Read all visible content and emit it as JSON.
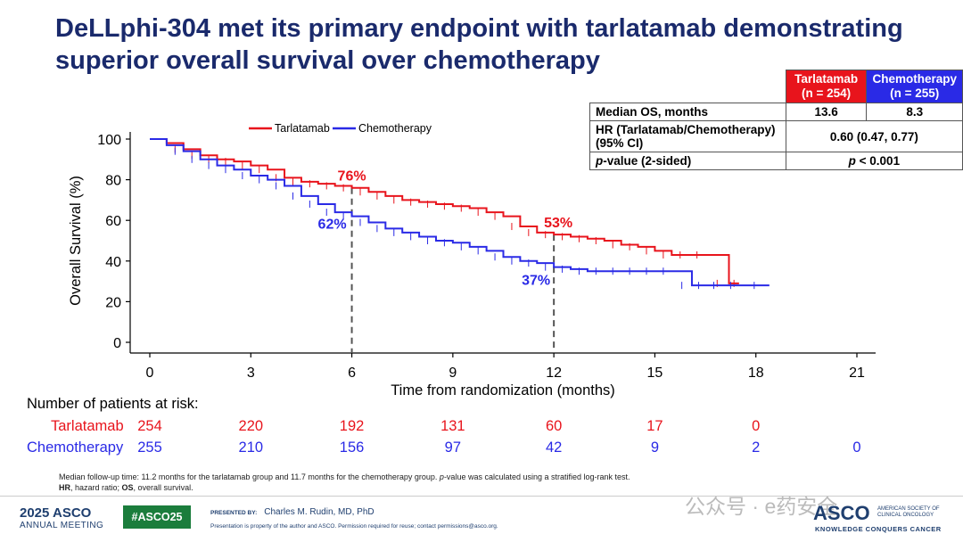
{
  "title_line1": "DeLLphi-304 met its primary endpoint with tarlatamab demonstrating",
  "title_line2": "superior overall survival over chemotherapy",
  "table": {
    "header_tarlatamab_line1": "Tarlatamab",
    "header_tarlatamab_line2": "(n = 254)",
    "header_chemo_line1": "Chemotherapy",
    "header_chemo_line2": "(n = 255)",
    "row1_label": "Median OS, months",
    "row1_tarlatamab": "13.6",
    "row1_chemo": "8.3",
    "row2_label_line1": "HR (Tarlatamab/Chemotherapy)",
    "row2_label_line2": "(95% CI)",
    "row2_value": "0.60 (0.47, 0.77)",
    "row3_label_p": "p",
    "row3_label_rest": "-value (2-sided)",
    "row3_value_p": "p",
    "row3_value_rest": " < 0.001"
  },
  "colors": {
    "tarlatamab": "#e8141c",
    "chemotherapy": "#2a2ae6",
    "title": "#1a2a6c"
  },
  "chart_data": {
    "type": "line",
    "xlabel": "Time from randomization (months)",
    "ylabel": "Overall Survival (%)",
    "xlim": [
      0,
      21
    ],
    "ylim": [
      0,
      100
    ],
    "xticks": [
      0,
      3,
      6,
      9,
      12,
      15,
      18,
      21
    ],
    "yticks": [
      0,
      20,
      40,
      60,
      80,
      100
    ],
    "legend_position": "top-center",
    "grid": false,
    "series": [
      {
        "name": "Tarlatamab",
        "color": "#e8141c",
        "x": [
          0,
          0.5,
          1,
          1.5,
          2,
          2.5,
          3,
          3.5,
          4,
          4.5,
          5,
          5.5,
          6,
          6.5,
          7,
          7.5,
          8,
          8.5,
          9,
          9.5,
          10,
          10.5,
          11,
          11.5,
          12,
          12.5,
          13,
          13.5,
          14,
          14.5,
          15,
          15.5,
          16,
          16.5,
          17.2,
          17.5
        ],
        "y": [
          100,
          98,
          95,
          92,
          90,
          89,
          87,
          85,
          81,
          79,
          78,
          77,
          76,
          74,
          72,
          70,
          69,
          68,
          67,
          66,
          64,
          62,
          57,
          54,
          53,
          52,
          51,
          50,
          48,
          47,
          45,
          43,
          43,
          43,
          29,
          29
        ]
      },
      {
        "name": "Chemotherapy",
        "color": "#2a2ae6",
        "x": [
          0,
          0.5,
          1,
          1.5,
          2,
          2.5,
          3,
          3.5,
          4,
          4.5,
          5,
          5.5,
          6,
          6.5,
          7,
          7.5,
          8,
          8.5,
          9,
          9.5,
          10,
          10.5,
          11,
          11.5,
          12,
          12.5,
          13,
          13.5,
          14,
          14.5,
          15,
          15.5,
          16.1,
          16.5,
          17,
          17.5,
          18.4
        ],
        "y": [
          100,
          97,
          94,
          90,
          87,
          85,
          82,
          80,
          77,
          72,
          68,
          64,
          62,
          59,
          56,
          54,
          52,
          50,
          49,
          47,
          45,
          42,
          40,
          39,
          37,
          36,
          35,
          35,
          35,
          35,
          35,
          35,
          28,
          28,
          28,
          28,
          28
        ]
      }
    ],
    "annotations": [
      {
        "text": "76%",
        "x": 6,
        "y": 76,
        "series": "Tarlatamab"
      },
      {
        "text": "62%",
        "x": 6,
        "y": 62,
        "series": "Chemotherapy"
      },
      {
        "text": "53%",
        "x": 12,
        "y": 53,
        "series": "Tarlatamab"
      },
      {
        "text": "37%",
        "x": 12,
        "y": 37,
        "series": "Chemotherapy"
      }
    ],
    "reference_lines_x": [
      6,
      12
    ]
  },
  "risk_table": {
    "title": "Number of patients at risk:",
    "times": [
      0,
      3,
      6,
      9,
      12,
      15,
      18,
      21
    ],
    "tarlatamab_label": "Tarlatamab",
    "tarlatamab": [
      "254",
      "220",
      "192",
      "131",
      "60",
      "17",
      "0",
      ""
    ],
    "chemo_label": "Chemotherapy",
    "chemo": [
      "255",
      "210",
      "156",
      "97",
      "42",
      "9",
      "2",
      "0"
    ]
  },
  "notes": {
    "line1_a": "Median follow-up time: 11.2 months for the tarlatamab group and 11.7 months for the chemotherapy group. ",
    "line1_p": "p",
    "line1_b": "-value was calculated using a stratified log-rank test.",
    "line2_hr": "HR",
    "line2_a": ", hazard ratio; ",
    "line2_os": "OS",
    "line2_b": ", overall survival."
  },
  "footer": {
    "meeting_line1": "2025 ASCO",
    "meeting_line2": "ANNUAL MEETING",
    "hashtag": "#ASCO25",
    "presented_by_label": "PRESENTED BY:",
    "presenter": "Charles M. Rudin, MD, PhD",
    "disclaimer": "Presentation is property of the author and ASCO. Permission required for reuse; contact permissions@asco.org.",
    "watermark": "公众号 · e药安全",
    "asco_logo": "ASCO",
    "society": "AMERICAN SOCIETY OF CLINICAL ONCOLOGY",
    "tagline": "KNOWLEDGE CONQUERS CANCER"
  }
}
